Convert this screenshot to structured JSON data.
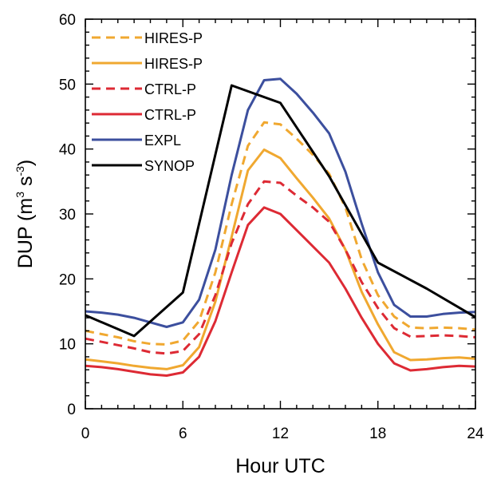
{
  "chart_data": {
    "type": "line",
    "title": "",
    "xlabel": "Hour UTC",
    "ylabel": {
      "base": "DUP (m",
      "exp1": "3",
      "mid": " s",
      "exp2": "-3",
      "end": ")"
    },
    "xlim": [
      0,
      24
    ],
    "ylim": [
      0,
      60
    ],
    "xticks": [
      0,
      6,
      12,
      18,
      24
    ],
    "yticks": [
      0,
      10,
      20,
      30,
      40,
      50,
      60
    ],
    "grid": false,
    "legend_position": "top-left",
    "series": [
      {
        "name": "HIRES-P",
        "color": "#f0a830",
        "dash": true,
        "x": [
          0,
          1,
          2,
          3,
          4,
          5,
          6,
          7,
          8,
          9,
          10,
          11,
          12,
          13,
          14,
          15,
          16,
          17,
          18,
          19,
          20,
          21,
          22,
          23,
          24
        ],
        "y": [
          12.0,
          11.5,
          11.0,
          10.4,
          10.0,
          9.9,
          10.5,
          13.5,
          21.0,
          31.5,
          40.5,
          44.1,
          43.8,
          41.6,
          39.1,
          36.2,
          31.0,
          23.0,
          17.5,
          14.2,
          12.5,
          12.4,
          12.5,
          12.4,
          12.2
        ]
      },
      {
        "name": "HIRES-P",
        "color": "#f0a830",
        "dash": false,
        "x": [
          0,
          1,
          2,
          3,
          4,
          5,
          6,
          7,
          8,
          9,
          10,
          11,
          12,
          13,
          14,
          15,
          16,
          17,
          18,
          19,
          20,
          21,
          22,
          23,
          24
        ],
        "y": [
          7.6,
          7.3,
          7.0,
          6.6,
          6.3,
          6.1,
          6.7,
          9.5,
          16.5,
          26.5,
          36.7,
          39.9,
          38.6,
          35.5,
          32.5,
          29.3,
          24.5,
          18.0,
          13.0,
          8.7,
          7.5,
          7.6,
          7.8,
          7.9,
          7.7
        ]
      },
      {
        "name": "CTRL-P",
        "color": "#dd2a34",
        "dash": true,
        "x": [
          0,
          1,
          2,
          3,
          4,
          5,
          6,
          7,
          8,
          9,
          10,
          11,
          12,
          13,
          14,
          15,
          16,
          17,
          18,
          19,
          20,
          21,
          22,
          23,
          24
        ],
        "y": [
          10.8,
          10.3,
          9.8,
          9.3,
          8.7,
          8.5,
          8.9,
          11.5,
          17.5,
          25.5,
          31.5,
          35.0,
          34.8,
          32.8,
          31.0,
          28.8,
          24.5,
          19.5,
          15.5,
          12.4,
          11.1,
          11.2,
          11.3,
          11.2,
          11.0
        ]
      },
      {
        "name": "CTRL-P",
        "color": "#dd2a34",
        "dash": false,
        "x": [
          0,
          1,
          2,
          3,
          4,
          5,
          6,
          7,
          8,
          9,
          10,
          11,
          12,
          13,
          14,
          15,
          16,
          17,
          18,
          19,
          20,
          21,
          22,
          23,
          24
        ],
        "y": [
          6.6,
          6.4,
          6.1,
          5.7,
          5.3,
          5.1,
          5.6,
          8.0,
          13.5,
          21.0,
          28.3,
          31.0,
          30.0,
          27.5,
          25.0,
          22.5,
          18.5,
          14.0,
          10.0,
          7.0,
          5.9,
          6.1,
          6.4,
          6.6,
          6.5
        ]
      },
      {
        "name": "EXPL",
        "color": "#3c4f9e",
        "dash": false,
        "x": [
          0,
          1,
          2,
          3,
          4,
          5,
          6,
          7,
          8,
          9,
          10,
          11,
          12,
          13,
          14,
          15,
          16,
          17,
          18,
          19,
          20,
          21,
          22,
          23,
          24
        ],
        "y": [
          15.0,
          14.8,
          14.5,
          14.0,
          13.3,
          12.6,
          13.3,
          16.8,
          24.5,
          36.0,
          46.0,
          50.6,
          50.8,
          48.5,
          45.6,
          42.4,
          36.5,
          28.5,
          21.0,
          16.0,
          14.2,
          14.2,
          14.6,
          14.8,
          14.9
        ]
      },
      {
        "name": "SYNOP",
        "color": "#000000",
        "dash": false,
        "x": [
          0,
          3,
          6,
          9,
          12,
          15,
          18,
          21,
          24
        ],
        "y": [
          14.4,
          11.2,
          17.9,
          49.8,
          47.1,
          35.8,
          22.5,
          18.5,
          14.1
        ]
      }
    ]
  }
}
